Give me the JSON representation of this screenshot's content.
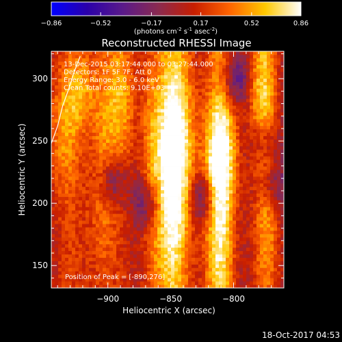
{
  "colorbar": {
    "ticks": [
      "-0.86",
      "-0.52",
      "-0.17",
      "0.17",
      "0.52",
      "0.86"
    ],
    "unit_parts": [
      "(photons cm",
      "-2",
      " s",
      "-1",
      " asec",
      "-2",
      ")"
    ],
    "min": -0.86,
    "max": 0.86,
    "stops": [
      "#0000ff",
      "#2a00aa",
      "#5a1a8a",
      "#8a2a50",
      "#c81e00",
      "#ff6400",
      "#ffc800",
      "#ffffff"
    ]
  },
  "chart_data": {
    "type": "heatmap",
    "title": "Reconstructed RHESSI Image",
    "xlabel": "Heliocentric X (arcsec)",
    "ylabel": "Heliocentric Y (arcsec)",
    "xlim": [
      -945,
      -760
    ],
    "ylim": [
      132,
      322
    ],
    "xticks": [
      -900,
      -850,
      -800
    ],
    "yticks": [
      150,
      200,
      250,
      300
    ],
    "xtick_labels": [
      "−900",
      "−850",
      "−800"
    ],
    "ytick_labels": [
      "150",
      "200",
      "250",
      "300"
    ],
    "peak": [
      -890,
      276
    ],
    "limb_points": [
      [
        -945,
        248
      ],
      [
        -940,
        262
      ],
      [
        -936,
        278
      ],
      [
        -931,
        292
      ],
      [
        -927,
        305
      ],
      [
        -922,
        318
      ]
    ],
    "ridges": [
      {
        "x": -922,
        "w": 10,
        "peak": 0.55,
        "y": [
          290,
          12
        ]
      },
      {
        "x": -936,
        "w": 9,
        "peak": 0.45,
        "y": [
          255,
          18
        ]
      },
      {
        "x": -890,
        "w": 9,
        "peak": 0.62,
        "y": [
          285,
          20
        ]
      },
      {
        "x": -904,
        "w": 7,
        "peak": 0.4,
        "y": [
          220,
          25
        ]
      },
      {
        "x": -846,
        "w": 11,
        "peak": 0.86,
        "y": [
          250,
          26
        ]
      },
      {
        "x": -850,
        "w": 9,
        "peak": 0.55,
        "y": [
          195,
          30
        ]
      },
      {
        "x": -810,
        "w": 9,
        "peak": 0.84,
        "y": [
          238,
          18
        ]
      },
      {
        "x": -812,
        "w": 8,
        "peak": 0.55,
        "y": [
          180,
          30
        ]
      },
      {
        "x": -778,
        "w": 8,
        "peak": 0.6,
        "y": [
          290,
          25
        ]
      },
      {
        "x": -772,
        "w": 7,
        "peak": 0.4,
        "y": [
          200,
          30
        ]
      },
      {
        "x": -866,
        "w": 6,
        "peak": 0.35,
        "y": [
          230,
          35
        ]
      }
    ],
    "blue_spots": [
      [
        -823,
        205
      ],
      [
        -770,
        215
      ],
      [
        -868,
        200
      ],
      [
        -897,
        218
      ],
      [
        -798,
        300
      ],
      [
        -775,
        250
      ]
    ],
    "info_lines": [
      "13-Dec-2015 03:17:44.000 to 03:27:44.000",
      "Detectors: 1F 5F 7F, Att 0",
      "Energy Range: 3.0 - 6.0 keV",
      "Clean     Total counts: 9.10E+03"
    ],
    "peak_label": "Position of Peak = [-890,276]"
  },
  "footer": {
    "timestamp": "18-Oct-2017 04:53"
  }
}
